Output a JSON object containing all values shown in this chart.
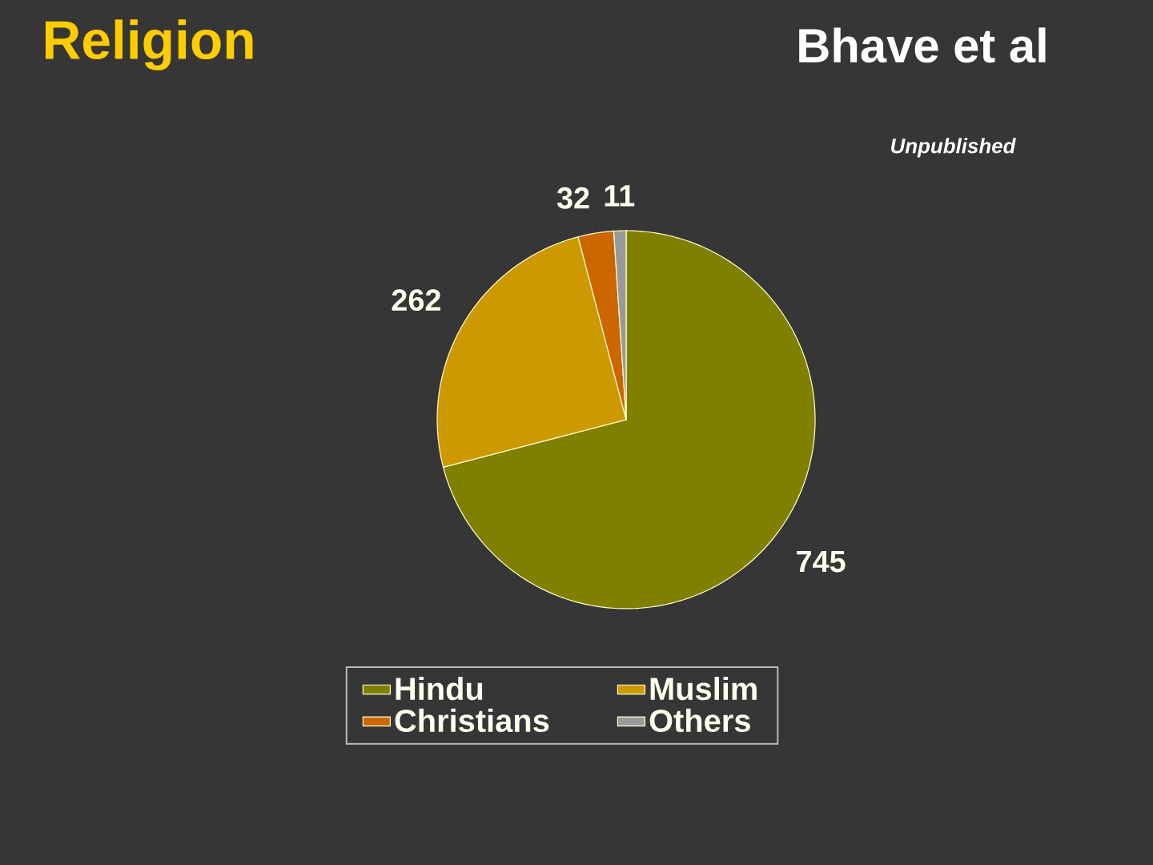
{
  "chart_data": {
    "type": "pie",
    "title": "Religion",
    "subtitle": "Bhave et al",
    "annotations": [
      "Unpublished"
    ],
    "categories": [
      "Hindu",
      "Muslim",
      "Christians",
      "Others"
    ],
    "values": [
      745,
      262,
      32,
      11
    ],
    "colors": [
      "#808000",
      "#cc9900",
      "#cc6600",
      "#999999"
    ],
    "data_labels": true,
    "legend": "bottom"
  }
}
